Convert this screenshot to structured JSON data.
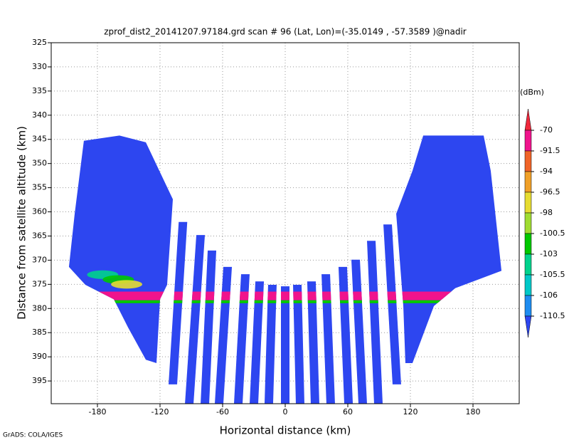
{
  "footer": "GrADS: COLA/IGES",
  "chart_data": {
    "type": "profile",
    "title": "zprof_dist2_20141207.97184.grd  scan # 96  (Lat, Lon)=(-35.0149 , -57.3589 )@nadir",
    "xlabel": "Horizontal distance (km)",
    "ylabel": "Distance from satellite altitude (km)",
    "xlim": [
      -224.3,
      224.3
    ],
    "ylim": [
      399.7,
      325
    ],
    "xticks": [
      -180,
      -120,
      -60,
      0,
      60,
      120,
      180
    ],
    "yticks": [
      325,
      330,
      335,
      340,
      345,
      350,
      355,
      360,
      365,
      370,
      375,
      380,
      385,
      390,
      395
    ],
    "grid": true,
    "colorbar": {
      "unit": "(dBm)",
      "levels": [
        -70,
        -91.5,
        -94,
        -96.5,
        -98,
        -100.5,
        -103,
        -105.5,
        -106,
        -110.5
      ],
      "colors": [
        "#f0283c",
        "#f0148c",
        "#f06428",
        "#f0a028",
        "#e6dc32",
        "#a0dc32",
        "#00c800",
        "#00d28c",
        "#00c8c8",
        "#1e8cf0",
        "#2d46f0"
      ]
    },
    "swaths": [
      {
        "x": [
          -193,
          -158.9,
          -133.6,
          -107.7,
          -113.2,
          -120,
          -123.4,
          -133.6,
          -150.7,
          -164.3,
          -191.6,
          -207.3,
          -201.8
        ],
        "y": [
          345.3,
          344.2,
          345.6,
          357.4,
          375.1,
          378.1,
          391.3,
          390.6,
          383.9,
          378.1,
          375.1,
          371.4,
          360.4
        ],
        "value": -112
      },
      {
        "x": [
          132.3,
          190.2,
          197,
          207.3,
          163,
          142.5,
          122,
          115.2,
          113.2,
          106.4,
          122
        ],
        "y": [
          344.2,
          344.2,
          351.5,
          372.2,
          375.8,
          379.5,
          391.3,
          391.3,
          379.5,
          360.4,
          351.5
        ],
        "value": -112
      }
    ],
    "beams": [
      {
        "x": [
          -98,
          -107.7
        ],
        "y": [
          362.1,
          395.7
        ],
        "value": -112
      },
      {
        "x": [
          -81.1,
          -92
        ],
        "y": [
          364.8,
          399.7
        ],
        "value": -112
      },
      {
        "x": [
          -70.2,
          -77
        ],
        "y": [
          368,
          399.7
        ],
        "value": -112
      },
      {
        "x": [
          -55.2,
          -63.4
        ],
        "y": [
          371.4,
          399.7
        ],
        "value": -112
      },
      {
        "x": [
          -38.2,
          -45
        ],
        "y": [
          372.9,
          399.7
        ],
        "value": -112
      },
      {
        "x": [
          -24.5,
          -30
        ],
        "y": [
          374.4,
          399.7
        ],
        "value": -112
      },
      {
        "x": [
          -12.3,
          -15.7
        ],
        "y": [
          375.1,
          399.7
        ],
        "value": -112
      },
      {
        "x": [
          0,
          0
        ],
        "y": [
          375.4,
          399.7
        ],
        "value": -112
      },
      {
        "x": [
          11.6,
          14.3
        ],
        "y": [
          375.1,
          399.7
        ],
        "value": -112
      },
      {
        "x": [
          25.2,
          28.6
        ],
        "y": [
          374.4,
          399.7
        ],
        "value": -112
      },
      {
        "x": [
          38.9,
          43.6
        ],
        "y": [
          372.9,
          399.7
        ],
        "value": -112
      },
      {
        "x": [
          55.2,
          60.7
        ],
        "y": [
          371.4,
          399.7
        ],
        "value": -112
      },
      {
        "x": [
          67.5,
          74.3
        ],
        "y": [
          369.9,
          399.7
        ],
        "value": -112
      },
      {
        "x": [
          82.5,
          89.3
        ],
        "y": [
          366,
          399.7
        ],
        "value": -112
      },
      {
        "x": [
          98.2,
          107
        ],
        "y": [
          362.6,
          395.7
        ],
        "value": -112
      }
    ],
    "layers": [
      {
        "y": [
          376.5,
          378.3
        ],
        "value": -85
      },
      {
        "y": [
          378.3,
          378.9
        ],
        "value": -102
      }
    ],
    "blobs": [
      {
        "x": -175,
        "y": 373,
        "value": -104
      },
      {
        "x": -160,
        "y": 374,
        "value": -101
      },
      {
        "x": -152,
        "y": 375,
        "value": -97
      }
    ]
  }
}
